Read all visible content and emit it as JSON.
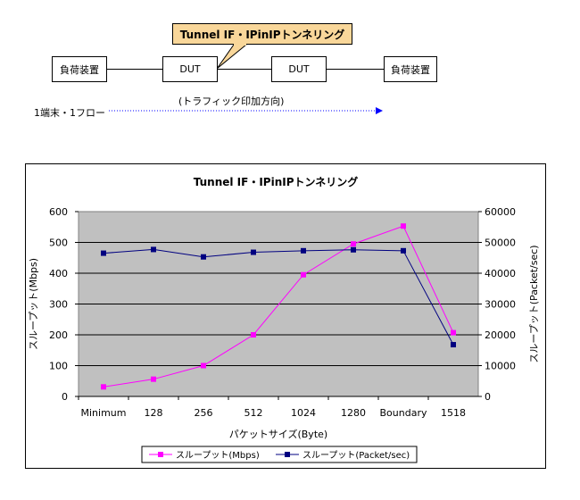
{
  "diagram": {
    "callout": "Tunnel IF・IPinIPトンネリング",
    "left_node": "負荷装置",
    "dut1": "DUT",
    "dut2": "DUT",
    "right_node": "負荷装置",
    "direction_label": "(トラフィック印加方向)",
    "flow_label": "1端末・1フロー"
  },
  "chart_data": {
    "type": "line",
    "title": "Tunnel IF・IPinIPトンネリング",
    "xlabel": "パケットサイズ(Byte)",
    "ylabel": "スループット(Mbps)",
    "y2label": "スループット(Packet/sec)",
    "categories": [
      "Minimum",
      "128",
      "256",
      "512",
      "1024",
      "1280",
      "Boundary",
      "1518"
    ],
    "ylim": [
      0,
      600
    ],
    "y2lim": [
      0,
      60000
    ],
    "yticks": [
      "0",
      "100",
      "200",
      "300",
      "400",
      "500",
      "600"
    ],
    "y2ticks": [
      "0",
      "10000",
      "20000",
      "30000",
      "40000",
      "50000",
      "60000"
    ],
    "grid": true,
    "legend_position": "bottom",
    "series": [
      {
        "name": "スループット(Mbps)",
        "axis": "left",
        "color": "#ff00ff",
        "marker": "square",
        "values": [
          31,
          56,
          100,
          200,
          395,
          495,
          553,
          207
        ]
      },
      {
        "name": "スループット(Packet/sec)",
        "axis": "right",
        "color": "#000080",
        "marker": "square",
        "values": [
          46500,
          47700,
          45300,
          46800,
          47300,
          47600,
          47300,
          16800
        ]
      }
    ]
  }
}
